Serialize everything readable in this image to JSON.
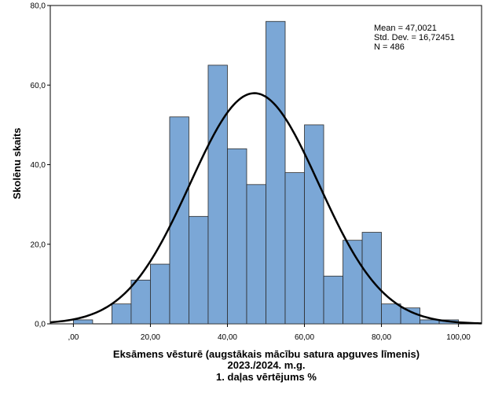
{
  "chart_data": {
    "type": "bar",
    "subtype": "histogram",
    "bin_width": 5,
    "bins_start": [
      0,
      5,
      10,
      15,
      20,
      25,
      30,
      35,
      40,
      45,
      50,
      55,
      60,
      65,
      70,
      75,
      80,
      85,
      90,
      95
    ],
    "values": [
      1,
      0,
      5,
      11,
      15,
      52,
      27,
      65,
      44,
      35,
      76,
      38,
      50,
      12,
      21,
      23,
      5,
      4,
      1,
      1
    ],
    "xlabel_lines": [
      "Eksāmens vēsturē (augstākais mācību satura apguves līmenis)",
      "2023./2024. m.g.",
      "1. daļas vērtējums %"
    ],
    "ylabel": "Skolēnu skaits",
    "xlim": [
      -6,
      106
    ],
    "ylim": [
      0,
      80
    ],
    "x_ticks": [
      {
        "value": 0,
        "label": ",00"
      },
      {
        "value": 20,
        "label": "20,00"
      },
      {
        "value": 40,
        "label": "40,00"
      },
      {
        "value": 60,
        "label": "60,00"
      },
      {
        "value": 80,
        "label": "80,00"
      },
      {
        "value": 100,
        "label": "100,00"
      }
    ],
    "y_ticks": [
      {
        "value": 0,
        "label": "0,0"
      },
      {
        "value": 20,
        "label": "20,0"
      },
      {
        "value": 40,
        "label": "40,0"
      },
      {
        "value": 60,
        "label": "60,0"
      },
      {
        "value": 80,
        "label": "80,0"
      }
    ],
    "normal_curve": {
      "mean": 47.0021,
      "sd": 16.72451,
      "n": 486
    },
    "stats_text": [
      "Mean = 47,0021",
      "Std. Dev. = 16,72451",
      "N = 486"
    ],
    "colors": {
      "bar_fill": "#7BA7D6",
      "bar_stroke": "#2b2b2b",
      "curve": "#000000",
      "frame": "#000000"
    },
    "grid": false
  }
}
